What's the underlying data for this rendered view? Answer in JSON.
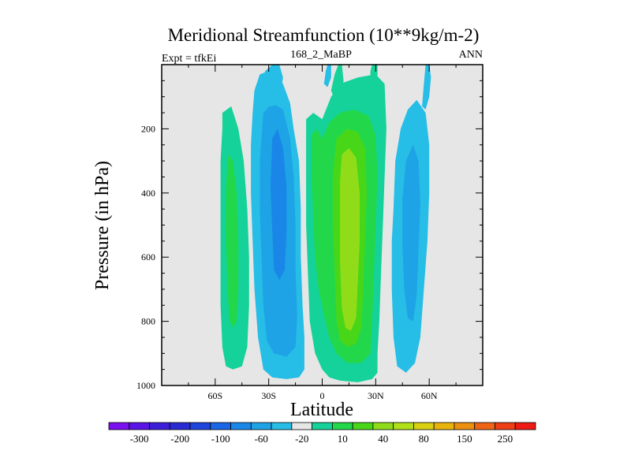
{
  "chart_data": {
    "type": "heatmap",
    "title": "Meridional Streamfunction (10**9kg/m-2)",
    "left_string": "Expt = tfkEi",
    "center_string": "168_2_MaBP",
    "right_string": "ANN",
    "xlabel": "Latitude",
    "ylabel": "Pressure (in hPa)",
    "xlim": [
      -90,
      90
    ],
    "ylim": [
      1000,
      0
    ],
    "x_ticks": [
      -60,
      -30,
      0,
      30,
      60
    ],
    "x_tick_labels": [
      "60S",
      "30S",
      "0",
      "30N",
      "60N"
    ],
    "y_ticks": [
      200,
      400,
      600,
      800,
      1000
    ],
    "y_tick_labels": [
      "200",
      "400",
      "600",
      "800",
      "1000"
    ],
    "background_color": "#e6e6e6",
    "colorbar": {
      "colors": [
        "#7a0ff0",
        "#5a14e6",
        "#3c1ed8",
        "#2a2ad4",
        "#1f44dd",
        "#1a66e6",
        "#1a87e8",
        "#1ea3e6",
        "#26bde6",
        "#e6e6e6",
        "#14d299",
        "#22d84a",
        "#48d618",
        "#90dc18",
        "#b0e018",
        "#d8d010",
        "#e8b40c",
        "#ec9010",
        "#ee6414",
        "#ef3e16",
        "#ee1a14"
      ],
      "labels": [
        "-300",
        "-200",
        "-100",
        "-60",
        "-20",
        "10",
        "40",
        "80",
        "150",
        "250"
      ],
      "label_box_index": [
        1,
        3,
        5,
        7,
        9,
        11,
        13,
        15,
        17,
        19
      ]
    },
    "contours": [
      {
        "name": "sh-positive-cell",
        "color": "#14d299",
        "points": [
          [
            -56,
            150
          ],
          [
            -51,
            130
          ],
          [
            -47,
            200
          ],
          [
            -44,
            300
          ],
          [
            -42,
            450
          ],
          [
            -41,
            600
          ],
          [
            -41,
            750
          ],
          [
            -42,
            880
          ],
          [
            -45,
            940
          ],
          [
            -50,
            950
          ],
          [
            -54,
            940
          ],
          [
            -56,
            880
          ],
          [
            -57,
            750
          ],
          [
            -57,
            600
          ],
          [
            -57,
            450
          ],
          [
            -57,
            300
          ],
          [
            -56,
            200
          ]
        ]
      },
      {
        "name": "sh-positive-core",
        "color": "#22d84a",
        "points": [
          [
            -53,
            280
          ],
          [
            -50,
            300
          ],
          [
            -48,
            400
          ],
          [
            -47,
            550
          ],
          [
            -47,
            700
          ],
          [
            -48,
            800
          ],
          [
            -50,
            820
          ],
          [
            -52,
            800
          ],
          [
            -53,
            700
          ],
          [
            -54,
            550
          ],
          [
            -54,
            400
          ]
        ]
      },
      {
        "name": "sh-negative-outer",
        "color": "#26bde6",
        "points": [
          [
            -38,
            80
          ],
          [
            -35,
            30
          ],
          [
            -30,
            20
          ],
          [
            -26,
            40
          ],
          [
            -22,
            60
          ],
          [
            -18,
            120
          ],
          [
            -16,
            200
          ],
          [
            -13,
            300
          ],
          [
            -12,
            450
          ],
          [
            -12,
            600
          ],
          [
            -11,
            750
          ],
          [
            -10,
            850
          ],
          [
            -10,
            950
          ],
          [
            -13,
            975
          ],
          [
            -20,
            980
          ],
          [
            -28,
            975
          ],
          [
            -33,
            950
          ],
          [
            -36,
            850
          ],
          [
            -38,
            700
          ],
          [
            -39,
            550
          ],
          [
            -40,
            400
          ],
          [
            -40,
            250
          ],
          [
            -39,
            150
          ]
        ]
      },
      {
        "name": "sh-negative-mid",
        "color": "#1ea3e6",
        "points": [
          [
            -33,
            150
          ],
          [
            -28,
            120
          ],
          [
            -22,
            140
          ],
          [
            -18,
            230
          ],
          [
            -16,
            350
          ],
          [
            -15,
            500
          ],
          [
            -15,
            650
          ],
          [
            -14,
            780
          ],
          [
            -15,
            880
          ],
          [
            -20,
            910
          ],
          [
            -27,
            900
          ],
          [
            -31,
            860
          ],
          [
            -33,
            750
          ],
          [
            -34,
            600
          ],
          [
            -35,
            450
          ],
          [
            -35,
            300
          ]
        ]
      },
      {
        "name": "sh-negative-core",
        "color": "#1a87e8",
        "points": [
          [
            -28,
            230
          ],
          [
            -25,
            200
          ],
          [
            -22,
            260
          ],
          [
            -20,
            380
          ],
          [
            -20,
            520
          ],
          [
            -21,
            640
          ],
          [
            -24,
            670
          ],
          [
            -27,
            640
          ],
          [
            -28,
            520
          ],
          [
            -29,
            380
          ]
        ]
      },
      {
        "name": "eq-positive-outer",
        "color": "#14d299",
        "points": [
          [
            -9,
            170
          ],
          [
            -5,
            150
          ],
          [
            0,
            170
          ],
          [
            5,
            100
          ],
          [
            10,
            60
          ],
          [
            20,
            40
          ],
          [
            30,
            30
          ],
          [
            35,
            60
          ],
          [
            36,
            200
          ],
          [
            35,
            350
          ],
          [
            34,
            500
          ],
          [
            33,
            650
          ],
          [
            32,
            800
          ],
          [
            31,
            900
          ],
          [
            31,
            960
          ],
          [
            28,
            980
          ],
          [
            20,
            990
          ],
          [
            10,
            985
          ],
          [
            4,
            975
          ],
          [
            0,
            950
          ],
          [
            -4,
            900
          ],
          [
            -7,
            800
          ],
          [
            -8,
            650
          ],
          [
            -9,
            500
          ],
          [
            -9,
            350
          ]
        ]
      },
      {
        "name": "eq-positive-mid",
        "color": "#22d84a",
        "points": [
          [
            -6,
            220
          ],
          [
            -3,
            200
          ],
          [
            0,
            230
          ],
          [
            4,
            180
          ],
          [
            10,
            150
          ],
          [
            18,
            140
          ],
          [
            26,
            160
          ],
          [
            30,
            220
          ],
          [
            31,
            350
          ],
          [
            30,
            500
          ],
          [
            29,
            650
          ],
          [
            28,
            800
          ],
          [
            27,
            900
          ],
          [
            22,
            930
          ],
          [
            14,
            930
          ],
          [
            8,
            900
          ],
          [
            4,
            850
          ],
          [
            1,
            780
          ],
          [
            -2,
            700
          ],
          [
            -4,
            600
          ],
          [
            -5,
            480
          ],
          [
            -6,
            350
          ]
        ]
      },
      {
        "name": "eq-positive-inner",
        "color": "#48d618",
        "points": [
          [
            8,
            230
          ],
          [
            14,
            200
          ],
          [
            20,
            210
          ],
          [
            24,
            260
          ],
          [
            25,
            400
          ],
          [
            24,
            550
          ],
          [
            23,
            700
          ],
          [
            22,
            820
          ],
          [
            19,
            870
          ],
          [
            14,
            880
          ],
          [
            10,
            860
          ],
          [
            8,
            800
          ],
          [
            7,
            650
          ],
          [
            6,
            500
          ],
          [
            6,
            350
          ]
        ]
      },
      {
        "name": "eq-positive-core",
        "color": "#90dc18",
        "points": [
          [
            11,
            280
          ],
          [
            15,
            260
          ],
          [
            19,
            290
          ],
          [
            21,
            400
          ],
          [
            21,
            550
          ],
          [
            20,
            680
          ],
          [
            19,
            790
          ],
          [
            16,
            830
          ],
          [
            13,
            820
          ],
          [
            11,
            760
          ],
          [
            10,
            620
          ],
          [
            10,
            470
          ],
          [
            10,
            360
          ]
        ]
      },
      {
        "name": "nh-negative-outer",
        "color": "#26bde6",
        "points": [
          [
            40,
            450
          ],
          [
            41,
            300
          ],
          [
            44,
            200
          ],
          [
            48,
            140
          ],
          [
            53,
            110
          ],
          [
            58,
            150
          ],
          [
            60,
            250
          ],
          [
            60,
            400
          ],
          [
            59,
            550
          ],
          [
            57,
            700
          ],
          [
            55,
            850
          ],
          [
            52,
            930
          ],
          [
            47,
            960
          ],
          [
            42,
            940
          ],
          [
            40,
            850
          ],
          [
            39,
            700
          ],
          [
            39,
            550
          ]
        ]
      },
      {
        "name": "nh-negative-mid",
        "color": "#1ea3e6",
        "points": [
          [
            45,
            420
          ],
          [
            47,
            300
          ],
          [
            51,
            250
          ],
          [
            54,
            300
          ],
          [
            55,
            430
          ],
          [
            54,
            580
          ],
          [
            53,
            720
          ],
          [
            51,
            800
          ],
          [
            48,
            790
          ],
          [
            46,
            700
          ],
          [
            45,
            560
          ]
        ]
      },
      {
        "name": "top-blue-strip-sh",
        "color": "#26bde6",
        "points": [
          [
            -34,
            130
          ],
          [
            -33,
            50
          ],
          [
            -32,
            20
          ],
          [
            -28,
            0
          ],
          [
            -24,
            0
          ],
          [
            -22,
            40
          ],
          [
            -24,
            120
          ],
          [
            -28,
            130
          ]
        ]
      },
      {
        "name": "top-green-strip-eq",
        "color": "#14d299",
        "points": [
          [
            5,
            80
          ],
          [
            7,
            30
          ],
          [
            9,
            0
          ],
          [
            11,
            0
          ],
          [
            12,
            50
          ],
          [
            10,
            100
          ],
          [
            7,
            110
          ]
        ]
      },
      {
        "name": "top-green-strip-nh",
        "color": "#14d299",
        "points": [
          [
            27,
            70
          ],
          [
            27,
            20
          ],
          [
            28,
            0
          ],
          [
            31,
            0
          ],
          [
            31,
            40
          ],
          [
            30,
            80
          ]
        ]
      },
      {
        "name": "top-blue-strip-nh",
        "color": "#26bde6",
        "points": [
          [
            56,
            130
          ],
          [
            57,
            60
          ],
          [
            58,
            0
          ],
          [
            60,
            0
          ],
          [
            61,
            40
          ],
          [
            60,
            100
          ],
          [
            58,
            140
          ]
        ]
      },
      {
        "name": "top-blue-strip-eq",
        "color": "#26bde6",
        "points": [
          [
            1,
            60
          ],
          [
            2,
            20
          ],
          [
            3,
            0
          ],
          [
            5,
            0
          ],
          [
            5,
            40
          ],
          [
            3,
            70
          ]
        ]
      }
    ]
  }
}
